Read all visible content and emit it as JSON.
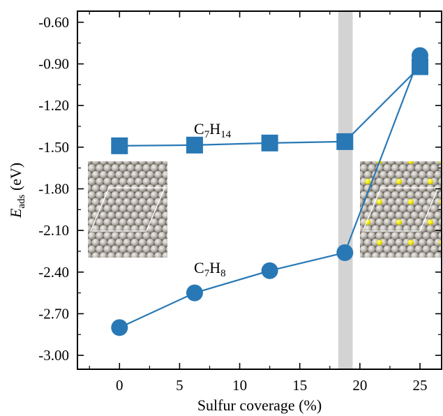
{
  "chart_data": {
    "type": "line",
    "xlabel": "Sulfur coverage (%)",
    "ylabel": {
      "main": "E",
      "sub": "ads",
      "unit": " (eV)"
    },
    "xlim": [
      -3.5,
      26.8
    ],
    "ylim": [
      -3.1,
      -0.52
    ],
    "x_ticks": [
      0,
      5,
      10,
      15,
      20,
      25
    ],
    "x_tick_labels": [
      "0",
      "5",
      "10",
      "15",
      "20",
      "25"
    ],
    "y_ticks": [
      -3.0,
      -2.7,
      -2.4,
      -2.1,
      -1.8,
      -1.5,
      -1.2,
      -0.9,
      -0.6
    ],
    "y_tick_labels": [
      "-3.00",
      "-2.70",
      "-2.40",
      "-2.10",
      "-1.80",
      "-1.50",
      "-1.20",
      "-0.90",
      "-0.60"
    ],
    "grid": false,
    "highlight_band": {
      "x": [
        18.2,
        19.4
      ],
      "color": "#d3d3d3"
    },
    "series": [
      {
        "name": {
          "main": "C",
          "parts": [
            [
              "7",
              true
            ],
            [
              "H",
              false
            ],
            [
              "14",
              true
            ]
          ]
        },
        "marker": "square",
        "color": "#2878b5",
        "x": [
          0,
          6.25,
          12.5,
          18.75,
          25
        ],
        "y": [
          -1.49,
          -1.485,
          -1.47,
          -1.46,
          -0.92
        ]
      },
      {
        "name": {
          "main": "C",
          "parts": [
            [
              "7",
              true
            ],
            [
              "H",
              false
            ],
            [
              "8",
              true
            ]
          ]
        },
        "marker": "circle",
        "color": "#2878b5",
        "x": [
          0,
          6.25,
          12.5,
          18.75,
          25
        ],
        "y": [
          -2.8,
          -2.55,
          -2.39,
          -2.26,
          -0.84
        ]
      }
    ]
  },
  "insets": {
    "left": {
      "sphere_color": "#b8b5ae",
      "sulfur": false
    },
    "right": {
      "sphere_color": "#b8b5ae",
      "sulfur_color": "#f2ea00",
      "sulfur": true
    }
  }
}
